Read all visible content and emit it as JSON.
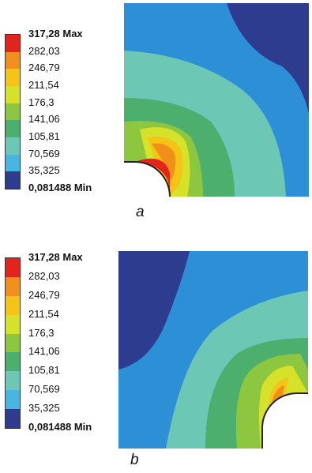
{
  "legend_labels": [
    "317,28 Max",
    "282,03",
    "246,79",
    "211,54",
    "176,3",
    "141,06",
    "105,81",
    "70,569",
    "35,325",
    "0,081488 Min"
  ],
  "legend_colors": [
    "#e4241c",
    "#f0901a",
    "#f4c416",
    "#d6e12a",
    "#8dc63f",
    "#4caf6e",
    "#6cc8b4",
    "#48b6e0",
    "#2d8fd6",
    "#2d3c8f"
  ],
  "panels": [
    {
      "caption": "a"
    },
    {
      "caption": "b"
    }
  ]
}
